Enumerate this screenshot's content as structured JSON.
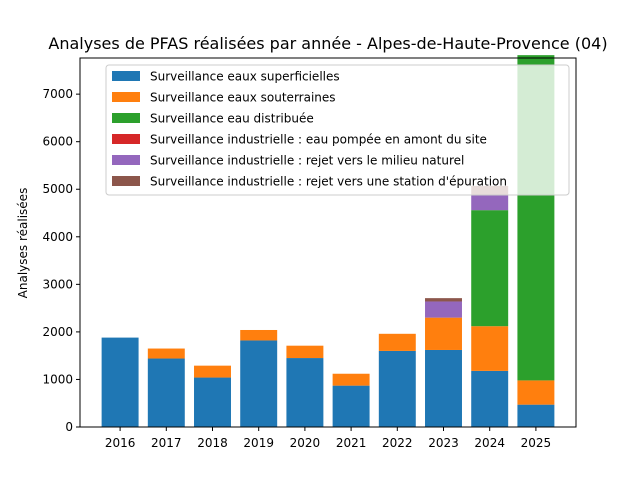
{
  "chart_data": {
    "type": "bar",
    "stacked": true,
    "title": "Analyses de PFAS réalisées par année - Alpes-de-Haute-Provence (04)",
    "xlabel": "",
    "ylabel": "Analyses réalisées",
    "categories": [
      "2016",
      "2017",
      "2018",
      "2019",
      "2020",
      "2021",
      "2022",
      "2023",
      "2024",
      "2025"
    ],
    "ylim": [
      0,
      7760
    ],
    "yticks": [
      0,
      1000,
      2000,
      3000,
      4000,
      5000,
      6000,
      7000
    ],
    "legend_position": "top-center",
    "grid": false,
    "series": [
      {
        "name": "Surveillance eaux superficielles",
        "color": "#1f77b4",
        "values": [
          1880,
          1440,
          1040,
          1820,
          1450,
          870,
          1600,
          1620,
          1180,
          470
        ]
      },
      {
        "name": "Surveillance eaux souterraines",
        "color": "#ff7f0e",
        "values": [
          0,
          210,
          250,
          220,
          260,
          250,
          360,
          680,
          940,
          510
        ]
      },
      {
        "name": "Surveillance eau distribuée",
        "color": "#2ca02c",
        "values": [
          0,
          0,
          0,
          0,
          0,
          0,
          0,
          0,
          2440,
          6840
        ]
      },
      {
        "name": "Surveillance industrielle : eau pompée en amont du site",
        "color": "#d62728",
        "values": [
          0,
          0,
          0,
          0,
          0,
          0,
          0,
          0,
          0,
          0
        ]
      },
      {
        "name": "Surveillance industrielle : rejet vers le milieu naturel",
        "color": "#9467bd",
        "values": [
          0,
          0,
          0,
          0,
          0,
          0,
          0,
          340,
          320,
          0
        ]
      },
      {
        "name": "Surveillance industrielle : rejet vers une station d'épuration",
        "color": "#8c564b",
        "values": [
          0,
          0,
          0,
          0,
          0,
          0,
          0,
          70,
          190,
          0
        ]
      }
    ]
  }
}
